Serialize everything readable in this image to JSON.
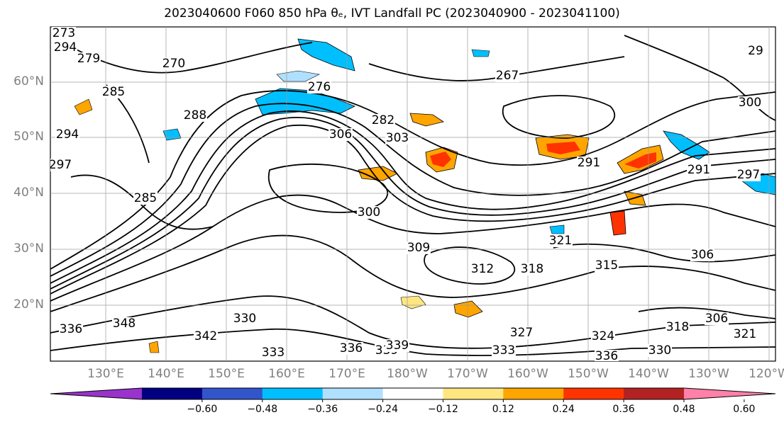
{
  "title": "2023040600 F060 850 hPa θₑ, IVT Landfall PC (2023040900 - 2023041100)",
  "lat_labels": [
    "60°N",
    "50°N",
    "40°N",
    "30°N",
    "20°N"
  ],
  "lon_labels": [
    "130°E",
    "140°E",
    "150°E",
    "160°E",
    "170°E",
    "180°W",
    "170°W",
    "160°W",
    "150°W",
    "140°W",
    "130°W",
    "120°W"
  ],
  "colorbar": {
    "colors": [
      "#9933cc",
      "#000080",
      "#3355cc",
      "#00bfff",
      "#b0e0ff",
      "#ffffff",
      "#ffe680",
      "#ffa500",
      "#ff3300",
      "#b22222",
      "#ff80a8"
    ],
    "ticks": [
      "−0.60",
      "−0.48",
      "−0.36",
      "−0.24",
      "−0.12",
      "0.12",
      "0.24",
      "0.36",
      "0.48",
      "0.60"
    ]
  },
  "contour_labels": [
    "273",
    "294",
    "270",
    "279",
    "285",
    "267",
    "29",
    "300",
    "288",
    "297",
    "294",
    "285",
    "276",
    "282",
    "306",
    "291",
    "300",
    "297",
    "291",
    "321",
    "309",
    "315",
    "318",
    "306",
    "312",
    "303",
    "306",
    "321",
    "327",
    "324",
    "318",
    "330",
    "336",
    "333",
    "339",
    "330",
    "342",
    "348",
    "336",
    "339",
    "336",
    "333"
  ]
}
